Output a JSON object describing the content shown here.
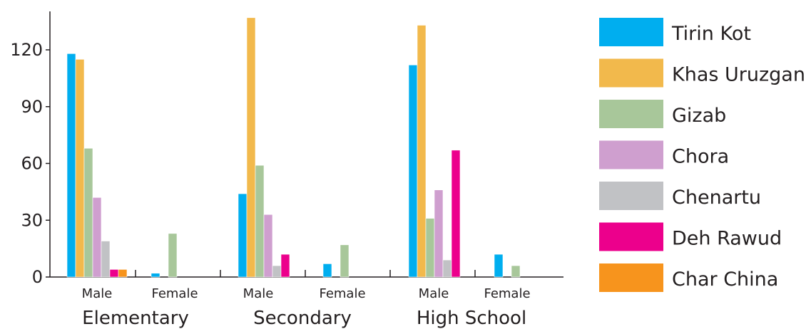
{
  "chart_data": {
    "type": "bar",
    "title": "",
    "xlabel": "",
    "ylabel": "",
    "ylim": [
      0,
      140
    ],
    "yticks": [
      0,
      30,
      60,
      90,
      120
    ],
    "groups": [
      "Elementary",
      "Secondary",
      "High School"
    ],
    "subgroups": [
      "Male",
      "Female"
    ],
    "legend_position": "right",
    "grid": false,
    "series": [
      {
        "name": "Tirin Kot",
        "color": "#00aeef",
        "values": [
          118,
          2,
          44,
          7,
          112,
          12
        ]
      },
      {
        "name": "Khas Uruzgan",
        "color": "#f2b94c",
        "values": [
          115,
          0,
          137,
          0,
          133,
          0
        ]
      },
      {
        "name": "Gizab",
        "color": "#a8c79a",
        "values": [
          68,
          23,
          59,
          17,
          31,
          6
        ]
      },
      {
        "name": "Chora",
        "color": "#cf9fcf",
        "values": [
          42,
          0,
          33,
          0,
          46,
          0
        ]
      },
      {
        "name": "Chenartu",
        "color": "#c1c2c5",
        "values": [
          19,
          0,
          6,
          0,
          9,
          0
        ]
      },
      {
        "name": "Deh Rawud",
        "color": "#ec008c",
        "values": [
          4,
          0,
          12,
          0,
          67,
          0
        ]
      },
      {
        "name": "Char China",
        "color": "#f7941d",
        "values": [
          4,
          0,
          0,
          0,
          0,
          0
        ]
      }
    ]
  }
}
